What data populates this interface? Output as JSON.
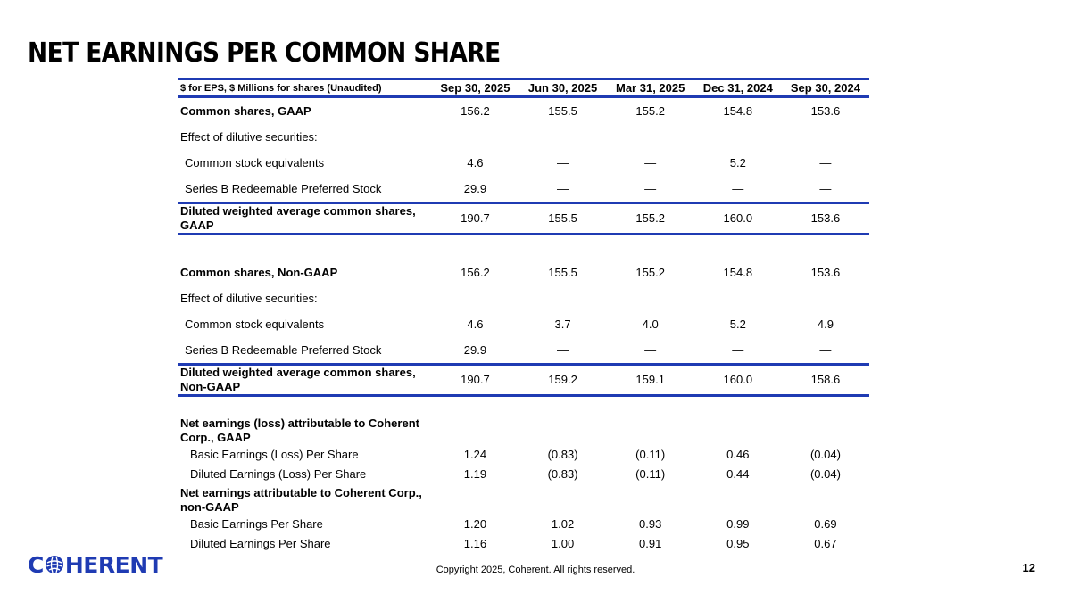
{
  "title": "NET EARNINGS PER COMMON SHARE",
  "table": {
    "header_label": "$ for EPS, $ Millions for shares (Unaudited)",
    "columns": [
      "Sep 30, 2025",
      "Jun 30, 2025",
      "Mar 31, 2025",
      "Dec 31, 2024",
      "Sep 30, 2024"
    ],
    "gaap": {
      "common": {
        "label": "Common shares, GAAP",
        "values": [
          "156.2",
          "155.5",
          "155.2",
          "154.8",
          "153.6"
        ]
      },
      "effect_label": "Effect of dilutive securities:",
      "equiv": {
        "label": "Common stock equivalents",
        "values": [
          "4.6",
          "—",
          "—",
          "5.2",
          "—"
        ]
      },
      "seriesb": {
        "label": "Series B Redeemable Preferred Stock",
        "values": [
          "29.9",
          "—",
          "—",
          "—",
          "—"
        ]
      },
      "diluted": {
        "label": "Diluted weighted average common shares, GAAP",
        "values": [
          "190.7",
          "155.5",
          "155.2",
          "160.0",
          "153.6"
        ]
      }
    },
    "nongaap": {
      "common": {
        "label": "Common shares, Non-GAAP",
        "values": [
          "156.2",
          "155.5",
          "155.2",
          "154.8",
          "153.6"
        ]
      },
      "effect_label": "Effect of dilutive securities:",
      "equiv": {
        "label": "Common stock equivalents",
        "values": [
          "4.6",
          "3.7",
          "4.0",
          "5.2",
          "4.9"
        ]
      },
      "seriesb": {
        "label": "Series B Redeemable Preferred Stock",
        "values": [
          "29.9",
          "—",
          "—",
          "—",
          "—"
        ]
      },
      "diluted": {
        "label": "Diluted weighted average common shares, Non-GAAP",
        "values": [
          "190.7",
          "159.2",
          "159.1",
          "160.0",
          "158.6"
        ]
      }
    },
    "eps_gaap": {
      "header": "Net earnings (loss) attributable to Coherent Corp., GAAP",
      "basic": {
        "label": "Basic Earnings (Loss) Per Share",
        "values": [
          "1.24",
          "(0.83)",
          "(0.11)",
          "0.46",
          "(0.04)"
        ]
      },
      "diluted": {
        "label": "Diluted Earnings (Loss) Per Share",
        "values": [
          "1.19",
          "(0.83)",
          "(0.11)",
          "0.44",
          "(0.04)"
        ]
      }
    },
    "eps_nongaap": {
      "header": "Net earnings attributable to Coherent Corp., non-GAAP",
      "basic": {
        "label": "Basic Earnings Per Share",
        "values": [
          "1.20",
          "1.02",
          "0.93",
          "0.99",
          "0.69"
        ]
      },
      "diluted": {
        "label": "Diluted Earnings Per Share",
        "values": [
          "1.16",
          "1.00",
          "0.91",
          "0.95",
          "0.67"
        ]
      }
    }
  },
  "footer": {
    "logo_prefix": "C",
    "logo_suffix": "HERENT",
    "copyright": "Copyright 2025, Coherent. All rights reserved.",
    "page_number": "12"
  },
  "colors": {
    "accent": "#1f3bb3"
  }
}
